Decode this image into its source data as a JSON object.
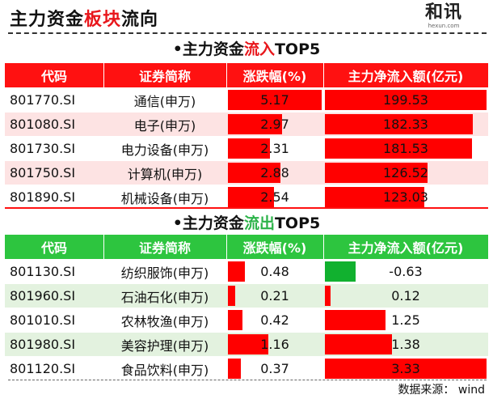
{
  "header": {
    "title_part1": "主力资金",
    "title_highlight": "板块",
    "title_part2": "流向",
    "logo_cn": "和讯",
    "logo_en": "hexun.com"
  },
  "colors": {
    "inflow_header": "#ff1111",
    "outflow_header": "#2dc53f",
    "bar_red": "#ff0000",
    "bar_green": "#11b12f"
  },
  "inflow": {
    "title_prefix": "•主力资金",
    "title_highlight": "流入",
    "title_suffix": "TOP5",
    "columns": [
      "代码",
      "证券简称",
      "涨跌幅(%)",
      "主力净流入额(亿元)"
    ]
  },
  "outflow": {
    "title_prefix": "•主力资金",
    "title_highlight": "流出",
    "title_suffix": "TOP5",
    "columns": [
      "代码",
      "证券简称",
      "涨跌幅(%)",
      "主力净流入额(亿元)"
    ]
  },
  "chart_data": [
    {
      "type": "table",
      "title": "主力资金流入TOP5",
      "columns": [
        "代码",
        "证券简称",
        "涨跌幅(%)",
        "主力净流入额(亿元)"
      ],
      "rows": [
        {
          "code": "801770.SI",
          "name": "通信(申万)",
          "change": "5.17",
          "net_inflow": "199.53"
        },
        {
          "code": "801080.SI",
          "name": "电子(申万)",
          "change": "2.97",
          "net_inflow": "182.33"
        },
        {
          "code": "801730.SI",
          "name": "电力设备(申万)",
          "change": "2.31",
          "net_inflow": "181.53"
        },
        {
          "code": "801750.SI",
          "name": "计算机(申万)",
          "change": "2.88",
          "net_inflow": "126.52"
        },
        {
          "code": "801890.SI",
          "name": "机械设备(申万)",
          "change": "2.54",
          "net_inflow": "123.03"
        }
      ]
    },
    {
      "type": "table",
      "title": "主力资金流出TOP5",
      "columns": [
        "代码",
        "证券简称",
        "涨跌幅(%)",
        "主力净流入额(亿元)"
      ],
      "rows": [
        {
          "code": "801130.SI",
          "name": "纺织服饰(申万)",
          "change": "0.48",
          "net_inflow": "-0.63"
        },
        {
          "code": "801960.SI",
          "name": "石油石化(申万)",
          "change": "0.21",
          "net_inflow": "0.12"
        },
        {
          "code": "801010.SI",
          "name": "农林牧渔(申万)",
          "change": "0.42",
          "net_inflow": "1.25"
        },
        {
          "code": "801980.SI",
          "name": "美容护理(申万)",
          "change": "1.16",
          "net_inflow": "1.38"
        },
        {
          "code": "801120.SI",
          "name": "食品饮料(申万)",
          "change": "0.37",
          "net_inflow": "3.33"
        }
      ]
    }
  ],
  "source": "数据来源：  wind"
}
